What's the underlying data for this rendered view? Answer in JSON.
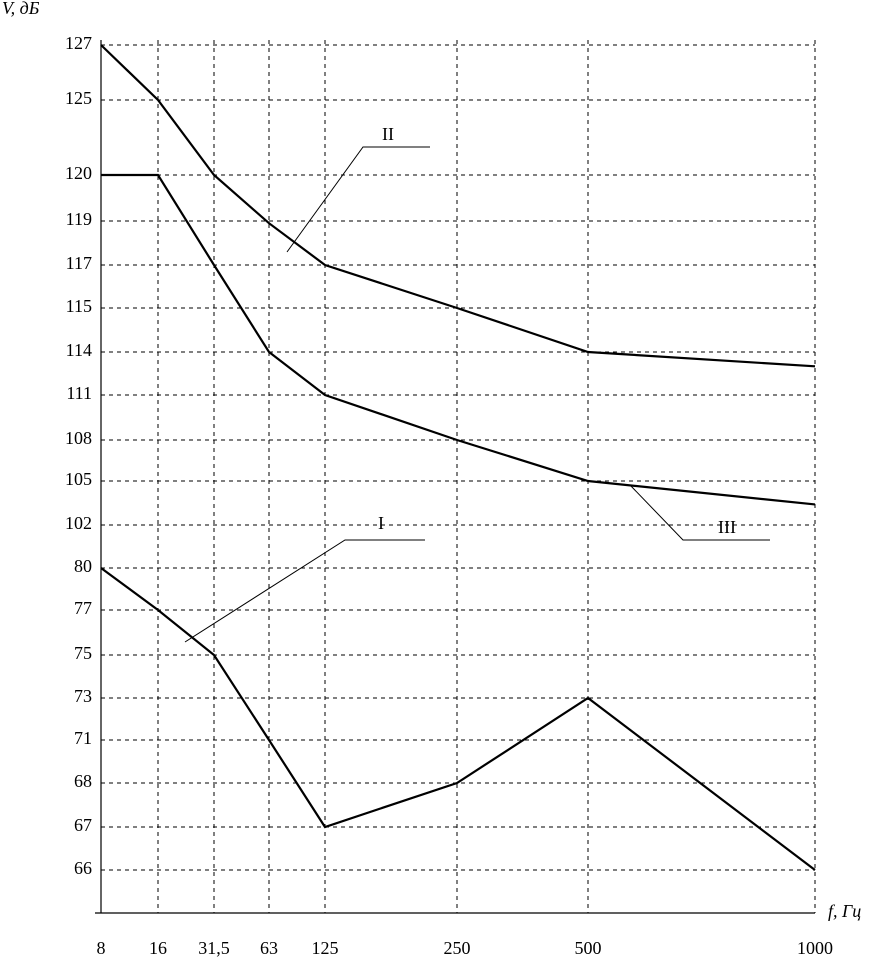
{
  "chart_data": {
    "type": "line",
    "y_label": "V, дБ",
    "x_label": "f, Гц",
    "categories": [
      "8",
      "16",
      "31,5",
      "63",
      "125",
      "250",
      "500",
      "1000"
    ],
    "yticks": [
      127,
      125,
      120,
      119,
      117,
      115,
      114,
      111,
      108,
      105,
      102,
      80,
      77,
      75,
      73,
      71,
      68,
      67,
      66
    ],
    "grid": true,
    "series": [
      {
        "name": "II",
        "color": "#000000",
        "values": [
          127,
          125,
          120,
          118.9,
          117,
          115,
          114,
          113
        ]
      },
      {
        "name": "III",
        "color": "#000000",
        "values": [
          120,
          120,
          117,
          114,
          111,
          108,
          105,
          103.4
        ]
      },
      {
        "name": "I",
        "color": "#000000",
        "values": [
          80,
          77,
          75,
          71,
          67,
          68,
          73,
          66
        ]
      }
    ]
  }
}
